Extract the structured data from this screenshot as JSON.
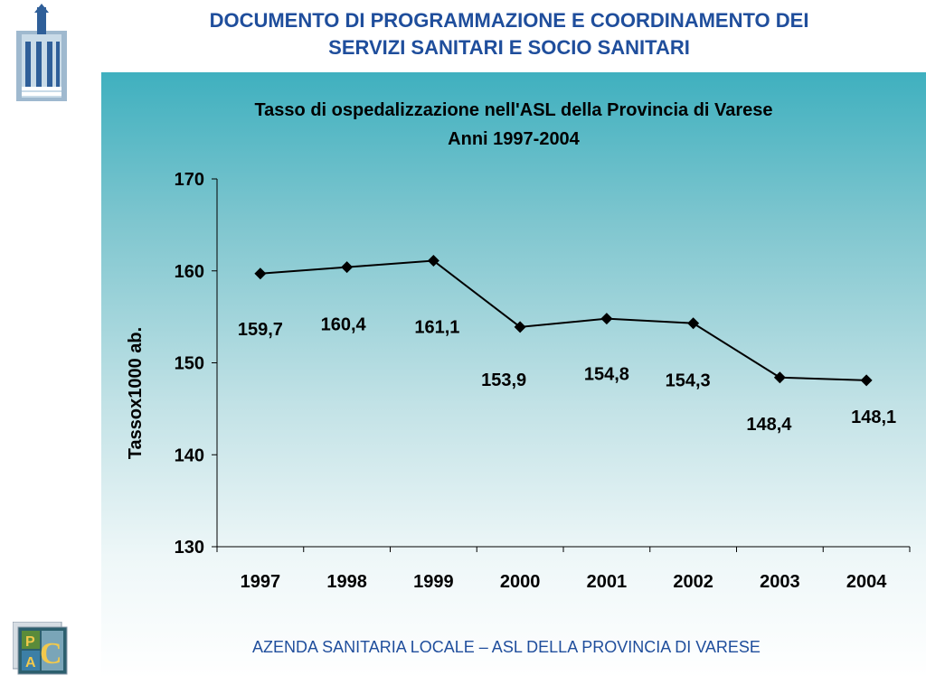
{
  "header": {
    "title_line1": "DOCUMENTO DI PROGRAMMAZIONE E COORDINAMENTO DEI",
    "title_line2": "SERVIZI SANITARI E SOCIO SANITARI"
  },
  "footer": {
    "text": "AZENDA SANITARIA LOCALE – ASL DELLA PROVINCIA DI VARESE"
  },
  "logo_bottom": {
    "letters": [
      "P",
      "A",
      "C"
    ]
  },
  "colors": {
    "title": "#1f4e9c",
    "panel_top": "#3fb0bf",
    "line": "#000000"
  },
  "chart_data": {
    "type": "line",
    "title": "Tasso di ospedalizzazione nell'ASL della Provincia di Varese",
    "subtitle": "Anni 1997-2004",
    "xlabel": "",
    "ylabel": "Tassox1000 ab.",
    "categories": [
      "1997",
      "1998",
      "1999",
      "2000",
      "2001",
      "2002",
      "2003",
      "2004"
    ],
    "values": [
      159.7,
      160.4,
      161.1,
      153.9,
      154.8,
      154.3,
      148.4,
      148.1
    ],
    "data_labels": [
      "159,7",
      "160,4",
      "161,1",
      "153,9",
      "154,8",
      "154,3",
      "148,4",
      "148,1"
    ],
    "ylim": [
      130,
      170
    ],
    "yticks": [
      130,
      140,
      150,
      160,
      170
    ],
    "grid": false,
    "legend": "none",
    "marker": "diamond"
  }
}
